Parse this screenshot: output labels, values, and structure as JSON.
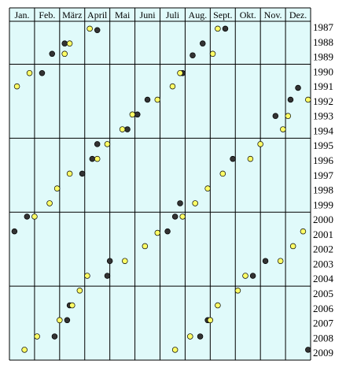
{
  "chart_data": {
    "type": "scatter",
    "title": "",
    "xlabel": "",
    "ylabel": "",
    "categories": [
      "Jan.",
      "Feb.",
      "März",
      "April",
      "Mai",
      "Juni",
      "Juli",
      "Aug.",
      "Sept.",
      "Okt.",
      "Nov.",
      "Dez."
    ],
    "years": [
      "1987",
      "1988",
      "1989",
      "1990",
      "1991",
      "1992",
      "1993",
      "1994",
      "1995",
      "1996",
      "1997",
      "1998",
      "1999",
      "2000",
      "2001",
      "2002",
      "2003",
      "2004",
      "2005",
      "2006",
      "2007",
      "2008",
      "2009"
    ],
    "x_range": [
      1,
      13
    ],
    "y_range": [
      1986.6,
      2009.5
    ],
    "grid": true,
    "background_color": "#e0fafa",
    "grid_color": "#000000",
    "series": [
      {
        "color": "#333333",
        "marker": "filled-dark-circle",
        "points": [
          [
            4.5,
            1987.2
          ],
          [
            3.2,
            1988.1
          ],
          [
            2.7,
            1988.8
          ],
          [
            8.7,
            1988.1
          ],
          [
            8.3,
            1988.9
          ],
          [
            9.6,
            1987.1
          ],
          [
            2.3,
            1990.1
          ],
          [
            7.9,
            1990.1
          ],
          [
            12.5,
            1991.1
          ],
          [
            6.5,
            1991.9
          ],
          [
            12.2,
            1991.9
          ],
          [
            6.1,
            1992.9
          ],
          [
            11.6,
            1993.0
          ],
          [
            5.7,
            1993.9
          ],
          [
            4.5,
            1994.9
          ],
          [
            4.3,
            1995.9
          ],
          [
            9.9,
            1995.9
          ],
          [
            3.9,
            1996.9
          ],
          [
            7.8,
            1998.9
          ],
          [
            1.7,
            1999.8
          ],
          [
            7.6,
            1999.8
          ],
          [
            1.2,
            2000.8
          ],
          [
            7.3,
            2000.8
          ],
          [
            5.0,
            2002.8
          ],
          [
            11.2,
            2002.8
          ],
          [
            4.9,
            2003.8
          ],
          [
            10.7,
            2003.8
          ],
          [
            3.4,
            2005.8
          ],
          [
            3.3,
            2006.8
          ],
          [
            8.9,
            2006.8
          ],
          [
            2.8,
            2007.9
          ],
          [
            8.6,
            2007.9
          ],
          [
            12.9,
            2008.8
          ]
        ]
      },
      {
        "color": "#ffff66",
        "marker": "yellow-circle",
        "points": [
          [
            3.4,
            1988.1
          ],
          [
            4.2,
            1987.1
          ],
          [
            3.2,
            1988.8
          ],
          [
            9.1,
            1988.8
          ],
          [
            9.3,
            1987.1
          ],
          [
            1.3,
            1991.0
          ],
          [
            1.8,
            1990.1
          ],
          [
            7.5,
            1991.0
          ],
          [
            7.8,
            1990.1
          ],
          [
            12.9,
            1991.9
          ],
          [
            6.9,
            1991.9
          ],
          [
            12.1,
            1993.0
          ],
          [
            5.9,
            1992.9
          ],
          [
            11.9,
            1993.9
          ],
          [
            5.5,
            1993.9
          ],
          [
            4.9,
            1994.9
          ],
          [
            11.0,
            1994.9
          ],
          [
            4.5,
            1995.9
          ],
          [
            10.6,
            1995.9
          ],
          [
            3.4,
            1996.9
          ],
          [
            9.5,
            1996.9
          ],
          [
            2.9,
            1997.9
          ],
          [
            8.9,
            1997.9
          ],
          [
            2.6,
            1998.9
          ],
          [
            8.4,
            1998.9
          ],
          [
            2.0,
            1999.8
          ],
          [
            7.9,
            1999.8
          ],
          [
            6.9,
            2000.9
          ],
          [
            12.7,
            2000.8
          ],
          [
            6.4,
            2001.8
          ],
          [
            12.3,
            2001.8
          ],
          [
            5.6,
            2002.8
          ],
          [
            11.8,
            2002.8
          ],
          [
            4.1,
            2003.8
          ],
          [
            10.4,
            2003.8
          ],
          [
            3.8,
            2004.8
          ],
          [
            10.1,
            2004.8
          ],
          [
            3.5,
            2005.8
          ],
          [
            9.3,
            2005.8
          ],
          [
            3.0,
            2006.8
          ],
          [
            9.0,
            2006.8
          ],
          [
            2.1,
            2007.9
          ],
          [
            8.2,
            2007.9
          ],
          [
            1.6,
            2008.8
          ],
          [
            7.6,
            2008.8
          ]
        ]
      }
    ]
  }
}
